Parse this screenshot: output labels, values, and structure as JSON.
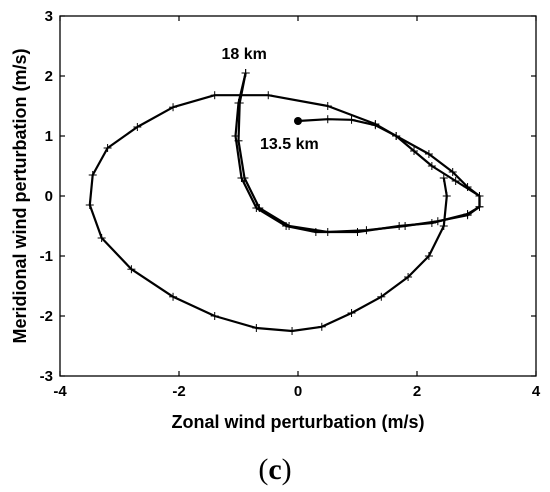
{
  "chart_data": {
    "type": "line",
    "xlabel": "Zonal wind perturbation (m/s)",
    "ylabel": "Meridional wind perturbation (m/s)",
    "xlim": [
      -4,
      4
    ],
    "ylim": [
      -3,
      3
    ],
    "xticks": [
      "-4",
      "-2",
      "0",
      "2",
      "4"
    ],
    "yticks": [
      "3",
      "2",
      "1",
      "0",
      "-1",
      "-2",
      "-3"
    ],
    "grid": false,
    "panel_label": {
      "open": "(",
      "letter": "c",
      "close": ")"
    },
    "annotations": [
      {
        "text": "18 km",
        "x": -0.95,
        "y": 2.05
      },
      {
        "text": "13.5 km",
        "x": 0.0,
        "y": 1.25
      }
    ],
    "series": [
      {
        "color": "#000000",
        "marker": "+",
        "start_marker": "dot",
        "points": [
          [
            0.0,
            1.25
          ],
          [
            0.5,
            1.28
          ],
          [
            0.9,
            1.27
          ],
          [
            1.3,
            1.18
          ],
          [
            1.65,
            1.0
          ],
          [
            1.95,
            0.75
          ],
          [
            2.25,
            0.5
          ],
          [
            2.65,
            0.25
          ],
          [
            3.05,
            0.0
          ],
          [
            3.05,
            -0.18
          ],
          [
            2.85,
            -0.32
          ],
          [
            2.35,
            -0.42
          ],
          [
            1.8,
            -0.5
          ],
          [
            1.15,
            -0.57
          ],
          [
            0.5,
            -0.6
          ],
          [
            -0.15,
            -0.5
          ],
          [
            -0.65,
            -0.2
          ],
          [
            -0.9,
            0.3
          ],
          [
            -1.0,
            0.92
          ],
          [
            -0.98,
            1.55
          ],
          [
            -0.88,
            2.05
          ]
        ]
      },
      {
        "color": "#000000",
        "marker": "+",
        "points": [
          [
            -0.88,
            2.05
          ],
          [
            -1.0,
            1.55
          ],
          [
            -1.05,
            1.0
          ],
          [
            -0.95,
            0.3
          ],
          [
            -0.7,
            -0.2
          ],
          [
            -0.2,
            -0.5
          ],
          [
            0.3,
            -0.6
          ],
          [
            1.0,
            -0.6
          ],
          [
            1.7,
            -0.5
          ],
          [
            2.25,
            -0.45
          ],
          [
            2.85,
            -0.3
          ],
          [
            3.05,
            -0.18
          ],
          [
            3.05,
            0.0
          ],
          [
            2.85,
            0.15
          ],
          [
            2.6,
            0.4
          ],
          [
            2.2,
            0.7
          ],
          [
            1.65,
            1.0
          ],
          [
            1.3,
            1.2
          ],
          [
            0.5,
            1.5
          ],
          [
            -0.5,
            1.68
          ],
          [
            -1.4,
            1.68
          ],
          [
            -2.1,
            1.48
          ],
          [
            -2.7,
            1.15
          ],
          [
            -3.2,
            0.8
          ],
          [
            -3.45,
            0.35
          ],
          [
            -3.5,
            -0.15
          ],
          [
            -3.3,
            -0.7
          ],
          [
            -2.8,
            -1.22
          ],
          [
            -2.1,
            -1.68
          ],
          [
            -1.4,
            -2.0
          ],
          [
            -0.7,
            -2.2
          ],
          [
            -0.1,
            -2.25
          ],
          [
            0.4,
            -2.18
          ],
          [
            0.9,
            -1.95
          ],
          [
            1.4,
            -1.68
          ],
          [
            1.85,
            -1.35
          ],
          [
            2.2,
            -1.0
          ],
          [
            2.45,
            -0.5
          ],
          [
            2.5,
            0.0
          ],
          [
            2.45,
            0.3
          ]
        ]
      }
    ]
  }
}
